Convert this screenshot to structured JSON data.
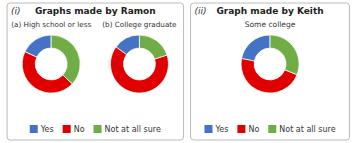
{
  "chart_data": [
    {
      "type": "pie",
      "title": "Graphs made by Ramon",
      "annotations": [
        "(i)"
      ],
      "categories": [
        "Yes",
        "No",
        "Not at all sure"
      ],
      "colors": [
        "#4472C4",
        "#E00000",
        "#70AD47"
      ],
      "series": [
        {
          "name": "(a) High school or less",
          "values": [
            0.18,
            0.45,
            0.37
          ]
        },
        {
          "name": "(b) College graduate",
          "values": [
            0.15,
            0.65,
            0.2
          ]
        }
      ],
      "legend": "bottom"
    },
    {
      "type": "pie",
      "title": "Graph made by Keith",
      "annotations": [
        "(ii)"
      ],
      "subtitle": "Some college",
      "categories": [
        "Yes",
        "No",
        "Not at all sure"
      ],
      "colors": [
        "#4472C4",
        "#E00000",
        "#70AD47"
      ],
      "series": [
        {
          "values": [
            0.22,
            0.47,
            0.31
          ]
        }
      ],
      "legend": "bottom"
    }
  ]
}
